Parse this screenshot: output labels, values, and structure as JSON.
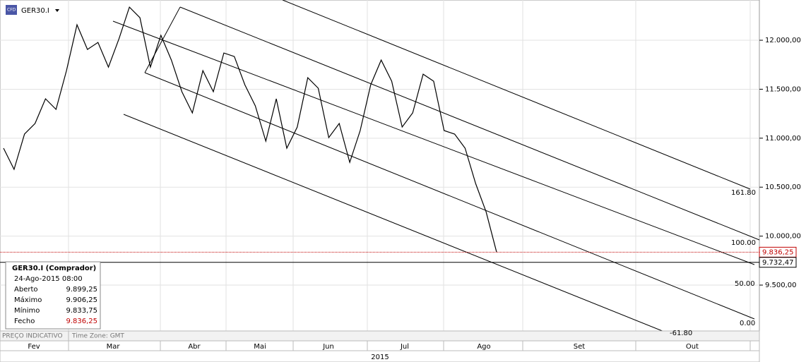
{
  "header": {
    "symbol": "GER30.I",
    "icon": "CFD"
  },
  "chart_data": {
    "type": "line",
    "color": "#000000",
    "values": [
      10898,
      10682,
      11042,
      11150,
      11402,
      11294,
      11690,
      12158,
      11906,
      11978,
      11726,
      12014,
      12338,
      12230,
      11726,
      12050,
      11798,
      11474,
      11258,
      11690,
      11474,
      11870,
      11834,
      11546,
      11330,
      10970,
      11402,
      10898,
      11114,
      11618,
      11510,
      11006,
      11150,
      10754,
      11078,
      11546,
      11798,
      11582,
      11114,
      11258,
      11654,
      11582,
      11078,
      11042,
      10898,
      10538,
      10249,
      9836.25
    ],
    "ylim": [
      9039,
      12411
    ],
    "yticks": [
      {
        "value": 9500,
        "label": "9.500,00"
      },
      {
        "value": 10000,
        "label": "10.000,00"
      },
      {
        "value": 10500,
        "label": "10.500,00"
      },
      {
        "value": 11000,
        "label": "11.000,00"
      },
      {
        "value": 11500,
        "label": "11.500,00"
      },
      {
        "value": 12000,
        "label": "12.000,00"
      }
    ],
    "months": [
      "Fev",
      "Mar",
      "Abr",
      "Mai",
      "Jun",
      "Jul",
      "Ago",
      "Set",
      "Out"
    ],
    "year": "2015",
    "grid": true,
    "price_lines": [
      {
        "value": 9836.25,
        "label": "9.836,25",
        "color": "#c00000"
      },
      {
        "value": 9732.47,
        "label": "9.732,47",
        "color": "#000000"
      }
    ],
    "fib_levels": [
      {
        "value": 161.8,
        "label": "161.80"
      },
      {
        "value": 100,
        "label": "100.00"
      },
      {
        "value": 50,
        "label": "50.00"
      },
      {
        "value": 0,
        "label": "0.00"
      },
      {
        "value": -61.8,
        "label": "-61.80"
      }
    ]
  },
  "info_box": {
    "title": "GER30.I (Comprador)",
    "date": "24-Ago-2015 08:00",
    "rows": [
      [
        "Aberto",
        "9.899,25"
      ],
      [
        "Máximo",
        "9.906,25"
      ],
      [
        "Mínimo",
        "9.833,75"
      ],
      [
        "Fecho",
        "9.836,25"
      ]
    ]
  },
  "footer": {
    "note": "PREÇO INDICATIVO",
    "timezone": "Time Zone: GMT"
  }
}
